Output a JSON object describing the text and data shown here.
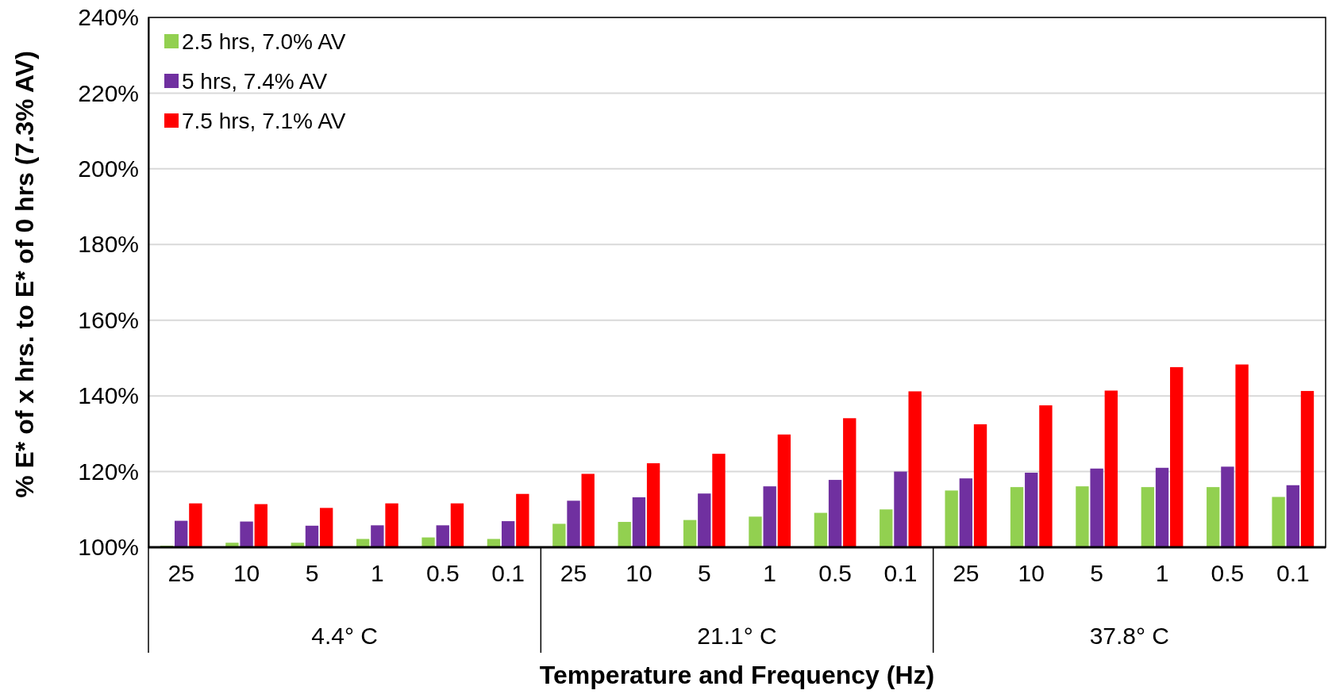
{
  "chart_data": {
    "type": "bar",
    "xlabel": "Temperature and Frequency (Hz)",
    "ylabel": "% E* of x hrs. to E* of 0 hrs (7.3% AV)",
    "categories": [
      "25",
      "10",
      "5",
      "1",
      "0.5",
      "0.1",
      "25",
      "10",
      "5",
      "1",
      "0.5",
      "0.1",
      "25",
      "10",
      "5",
      "1",
      "0.5",
      "0.1"
    ],
    "series": [
      {
        "name": "2.5 hrs, 7.0% AV",
        "color": "#92d050",
        "values": [
          100.4,
          101.2,
          101.2,
          102.2,
          102.6,
          102.2,
          106.2,
          106.7,
          107.2,
          108.1,
          109.1,
          110.0,
          115.0,
          115.9,
          116.1,
          115.9,
          115.9,
          113.3
        ]
      },
      {
        "name": "5 hrs, 7.4% AV",
        "color": "#7030a0",
        "values": [
          107.0,
          106.8,
          105.7,
          105.8,
          105.8,
          106.9,
          112.3,
          113.2,
          114.2,
          116.1,
          117.8,
          120.0,
          118.2,
          119.7,
          120.8,
          121.0,
          121.3,
          116.4
        ]
      },
      {
        "name": "7.5 hrs, 7.1% AV",
        "color": "#ff0000",
        "values": [
          111.6,
          111.4,
          110.4,
          111.6,
          111.6,
          114.1,
          119.4,
          122.2,
          124.7,
          129.8,
          134.1,
          141.2,
          132.5,
          137.5,
          141.4,
          147.6,
          148.3,
          141.3
        ]
      }
    ],
    "annotations": [
      "4.4° C",
      "21.1° C",
      "37.8° C"
    ],
    "ylim": [
      100,
      240
    ],
    "yticks": [
      {
        "value": 100,
        "label": "100%"
      },
      {
        "value": 120,
        "label": "120%"
      },
      {
        "value": 140,
        "label": "140%"
      },
      {
        "value": 160,
        "label": "160%"
      },
      {
        "value": 180,
        "label": "180%"
      },
      {
        "value": 200,
        "label": "200%"
      },
      {
        "value": 220,
        "label": "220%"
      },
      {
        "value": 240,
        "label": "240%"
      }
    ],
    "grid": "y",
    "legend": "top left"
  }
}
